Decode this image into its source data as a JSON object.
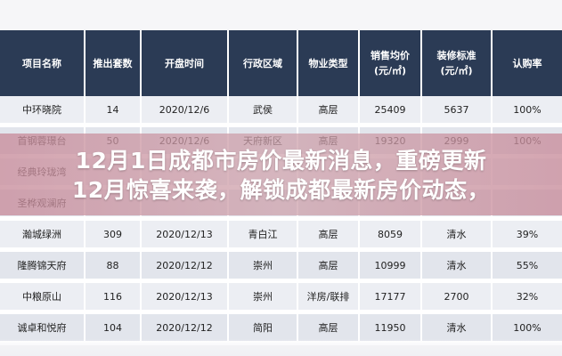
{
  "table": {
    "headers": [
      "项目名称",
      "推出套数",
      "开盘时间",
      "行政区域",
      "物业类型",
      "销售均价\n(元/㎡)",
      "装修标准\n(元/㎡)",
      "认购率"
    ],
    "rows": [
      [
        "中环晓院",
        "14",
        "2020/12/6",
        "武侯",
        "高层",
        "25409",
        "5637",
        "100%"
      ],
      [
        "首钢蓉璟台",
        "50",
        "2020/12/6",
        "天府新区",
        "高层",
        "19320",
        "2999",
        "100%"
      ],
      [
        "经典玲珑湾",
        "",
        "",
        "",
        "",
        "",
        "",
        ""
      ],
      [
        "圣桦观澜府",
        "",
        "",
        "",
        "",
        "",
        "",
        ""
      ],
      [
        "瀚城绿洲",
        "309",
        "2020/12/13",
        "青白江",
        "高层",
        "8059",
        "清水",
        "39%"
      ],
      [
        "隆腾锦天府",
        "88",
        "2020/12/12",
        "崇州",
        "高层",
        "10999",
        "清水",
        "55%"
      ],
      [
        "中粮原山",
        "116",
        "2020/12/13",
        "崇州",
        "洋房/联排",
        "17177",
        "2700",
        "32%"
      ],
      [
        "诚卓和悦府",
        "104",
        "2020/12/12",
        "简阳",
        "高层",
        "11950",
        "清水",
        "100%"
      ]
    ]
  },
  "banner": {
    "line1": "12月1日成都市房价最新消息，重磅更新",
    "line2": "12月惊喜来袭，解锁成都最新房价动态，"
  },
  "colors": {
    "header_bg": "#2b3b55",
    "banner_overlay": "#c98c9b"
  }
}
